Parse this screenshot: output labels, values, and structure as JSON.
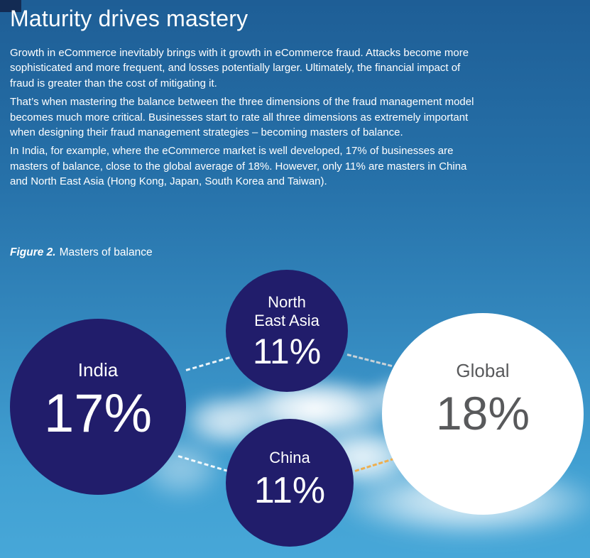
{
  "page": {
    "title": "Maturity drives mastery",
    "paragraphs": [
      "Growth in eCommerce inevitably brings with it growth in eCommerce fraud. Attacks become more sophisticated and more frequent, and losses potentially larger. Ultimately, the financial impact of fraud is greater than the cost of mitigating it.",
      "That’s when mastering the balance between the three dimensions of the fraud management model becomes much more critical. Businesses start to rate all three dimensions as extremely important when designing their fraud management strategies – becoming masters of balance.",
      "In India, for example, where the eCommerce market is well developed, 17% of businesses are masters of balance, close to the global average of 18%. However, only 11% are masters in China and North East Asia (Hong Kong, Japan, South Korea and Taiwan)."
    ],
    "figure_caption": {
      "label": "Figure 2.",
      "text": "Masters of balance"
    }
  },
  "figure": {
    "bubbles": [
      {
        "id": "india",
        "label": "India",
        "value": "17%"
      },
      {
        "id": "north-east-asia",
        "label_line1": "North",
        "label_line2": "East Asia",
        "value": "11%"
      },
      {
        "id": "china",
        "label": "China",
        "value": "11%"
      },
      {
        "id": "global",
        "label": "Global",
        "value": "18%"
      }
    ],
    "colors": {
      "bubble_navy": "#211d6b",
      "bubble_white": "#ffffff",
      "global_text": "#58595b",
      "connector_white": "#ffffff",
      "connector_gray": "#c9d2d8",
      "connector_orange": "#f2a93d",
      "sky_top": "#1e5e96",
      "sky_bottom": "#47a7d8"
    }
  },
  "chart_data": {
    "type": "bubble",
    "title": "Figure 2. Masters of balance",
    "categories": [
      "India",
      "North East Asia",
      "China",
      "Global"
    ],
    "values": [
      17,
      11,
      11,
      18
    ],
    "unit": "%",
    "notes": "Navy circles for regions, white circle for Global; circles connected by dashed lines"
  }
}
